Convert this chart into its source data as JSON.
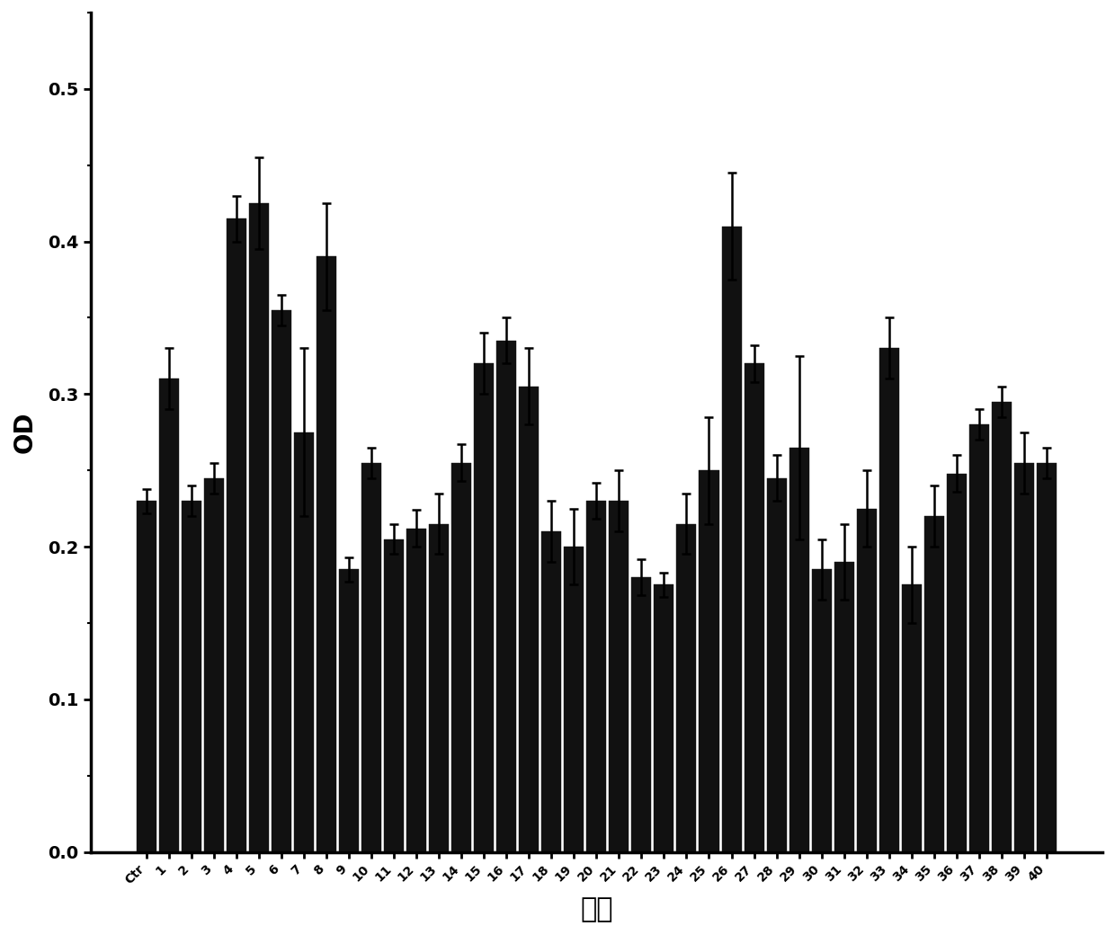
{
  "categories": [
    "Ctr",
    "1",
    "2",
    "3",
    "4",
    "5",
    "6",
    "7",
    "8",
    "9",
    "10",
    "11",
    "12",
    "13",
    "14",
    "15",
    "16",
    "17",
    "18",
    "19",
    "20",
    "21",
    "22",
    "23",
    "24",
    "25",
    "26",
    "27",
    "28",
    "29",
    "30",
    "31",
    "32",
    "33",
    "34",
    "35",
    "36",
    "37",
    "38",
    "39",
    "40"
  ],
  "values": [
    0.23,
    0.31,
    0.23,
    0.245,
    0.415,
    0.425,
    0.355,
    0.275,
    0.39,
    0.185,
    0.255,
    0.205,
    0.212,
    0.215,
    0.255,
    0.32,
    0.335,
    0.305,
    0.21,
    0.2,
    0.23,
    0.23,
    0.18,
    0.175,
    0.215,
    0.25,
    0.41,
    0.32,
    0.245,
    0.265,
    0.185,
    0.19,
    0.225,
    0.33,
    0.175,
    0.22,
    0.248,
    0.28,
    0.295,
    0.255,
    0.255
  ],
  "errors": [
    0.008,
    0.02,
    0.01,
    0.01,
    0.015,
    0.03,
    0.01,
    0.055,
    0.035,
    0.008,
    0.01,
    0.01,
    0.012,
    0.02,
    0.012,
    0.02,
    0.015,
    0.025,
    0.02,
    0.025,
    0.012,
    0.02,
    0.012,
    0.008,
    0.02,
    0.035,
    0.035,
    0.012,
    0.015,
    0.06,
    0.02,
    0.025,
    0.025,
    0.02,
    0.025,
    0.02,
    0.012,
    0.01,
    0.01,
    0.02,
    0.01
  ],
  "bar_color": "#111111",
  "bar_edgecolor": "#111111",
  "error_color": "#000000",
  "xlabel": "编号",
  "ylabel": "OD",
  "ylim": [
    0.0,
    0.55
  ],
  "yticks": [
    0.0,
    0.1,
    0.2,
    0.3,
    0.4,
    0.5
  ],
  "background_color": "#ffffff",
  "axis_fontsize": 18,
  "tick_fontsize": 10,
  "ylabel_fontsize": 20,
  "xlabel_fontsize": 22
}
